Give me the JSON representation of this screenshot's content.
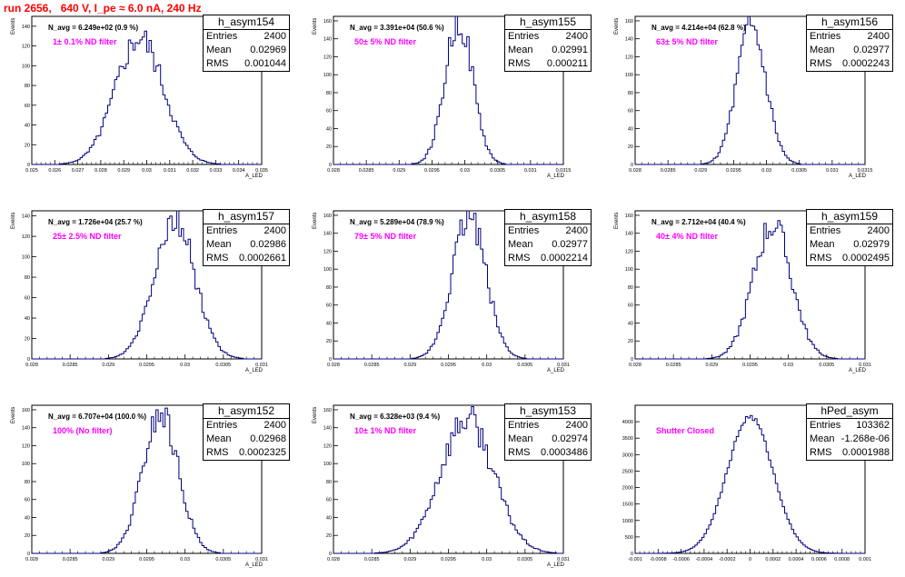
{
  "page": {
    "title": "run 2656,   640 V, I_pe ≈ 6.0 nA, 240 Hz",
    "title_color": "#ff0000",
    "line_color": "#000080",
    "filter_color": "#ff00ff"
  },
  "stats_labels": {
    "entries": "Entries",
    "mean": "Mean",
    "rms": "RMS"
  },
  "chart_data": [
    {
      "type": "histogram",
      "name": "h_asym154",
      "annotation": "N_avg = 6.249e+02 (0.9 %)",
      "filter": "1± 0.1% ND filter",
      "entries": "2400",
      "mean": "0.02969",
      "rms": "0.001044",
      "xlabel": "A_LED",
      "ylabel": "Events",
      "xlim": [
        0.025,
        0.035
      ],
      "ylim": [
        0,
        150
      ],
      "xticks": [
        "0.025",
        "0.026",
        "0.027",
        "0.028",
        "0.029",
        "0.03",
        "0.031",
        "0.032",
        "0.033",
        "0.034",
        "0.035"
      ],
      "yticks": [
        "0",
        "20",
        "40",
        "60",
        "80",
        "100",
        "120",
        "140"
      ],
      "mean_value": 0.02969,
      "sigma": 0.001044,
      "peak": 128
    },
    {
      "type": "histogram",
      "name": "h_asym155",
      "annotation": "N_avg = 3.391e+04 (50.6 %)",
      "filter": "50± 5% ND filter",
      "entries": "2400",
      "mean": "0.02991",
      "rms": "0.000211",
      "xlabel": "A_LED",
      "ylabel": "Events",
      "xlim": [
        0.028,
        0.0315
      ],
      "ylim": [
        0,
        165
      ],
      "xticks": [
        "0.028",
        "0.0285",
        "0.029",
        "0.0295",
        "0.03",
        "0.0305",
        "0.031",
        "0.0315"
      ],
      "yticks": [
        "0",
        "20",
        "40",
        "60",
        "80",
        "100",
        "120",
        "140",
        "160"
      ],
      "mean_value": 0.02991,
      "sigma": 0.000211,
      "peak": 160
    },
    {
      "type": "histogram",
      "name": "h_asym156",
      "annotation": "N_avg = 4.214e+04 (62.8 %)",
      "filter": "63± 5% ND filter",
      "entries": "2400",
      "mean": "0.02977",
      "rms": "0.0002243",
      "xlabel": "A_LED",
      "ylabel": "Events",
      "xlim": [
        0.028,
        0.0315
      ],
      "ylim": [
        0,
        165
      ],
      "xticks": [
        "0.028",
        "0.0285",
        "0.029",
        "0.0295",
        "0.03",
        "0.0305",
        "0.031",
        "0.0315"
      ],
      "yticks": [
        "0",
        "20",
        "40",
        "60",
        "80",
        "100",
        "120",
        "140",
        "160"
      ],
      "mean_value": 0.02977,
      "sigma": 0.0002243,
      "peak": 150
    },
    {
      "type": "histogram",
      "name": "h_asym157",
      "annotation": "N_avg = 1.726e+04 (25.7 %)",
      "filter": "25± 2.5% ND filter",
      "entries": "2400",
      "mean": "0.02986",
      "rms": "0.0002661",
      "xlabel": "A_LED",
      "ylabel": "Events",
      "xlim": [
        0.028,
        0.031
      ],
      "ylim": [
        0,
        145
      ],
      "xticks": [
        "0.028",
        "0.0285",
        "0.029",
        "0.0295",
        "0.03",
        "0.0305",
        "0.031"
      ],
      "yticks": [
        "0",
        "20",
        "40",
        "60",
        "80",
        "100",
        "120",
        "140"
      ],
      "mean_value": 0.02986,
      "sigma": 0.0002661,
      "peak": 138
    },
    {
      "type": "histogram",
      "name": "h_asym158",
      "annotation": "N_avg = 5.289e+04 (78.9 %)",
      "filter": "79± 5% ND filter",
      "entries": "2400",
      "mean": "0.02977",
      "rms": "0.0002214",
      "xlabel": "A_LED",
      "ylabel": "Events",
      "xlim": [
        0.028,
        0.031
      ],
      "ylim": [
        0,
        165
      ],
      "xticks": [
        "0.028",
        "0.0285",
        "0.029",
        "0.0295",
        "0.03",
        "0.0305",
        "0.031"
      ],
      "yticks": [
        "0",
        "20",
        "40",
        "60",
        "80",
        "100",
        "120",
        "140",
        "160"
      ],
      "mean_value": 0.02977,
      "sigma": 0.0002214,
      "peak": 160
    },
    {
      "type": "histogram",
      "name": "h_asym159",
      "annotation": "N_avg = 2.712e+04 (40.4 %)",
      "filter": "40± 4% ND filter",
      "entries": "2400",
      "mean": "0.02979",
      "rms": "0.0002495",
      "xlabel": "A_LED",
      "ylabel": "Events",
      "xlim": [
        0.028,
        0.031
      ],
      "ylim": [
        0,
        165
      ],
      "xticks": [
        "0.028",
        "0.0285",
        "0.029",
        "0.0295",
        "0.03",
        "0.0305",
        "0.031"
      ],
      "yticks": [
        "0",
        "20",
        "40",
        "60",
        "80",
        "100",
        "120",
        "140",
        "160"
      ],
      "mean_value": 0.02979,
      "sigma": 0.0002495,
      "peak": 150
    },
    {
      "type": "histogram",
      "name": "h_asym152",
      "annotation": "N_avg = 6.707e+04 (100.0 %)",
      "filter": "100% (No filter)",
      "entries": "2400",
      "mean": "0.02968",
      "rms": "0.0002325",
      "xlabel": "A_LED",
      "ylabel": "Events",
      "xlim": [
        0.028,
        0.031
      ],
      "ylim": [
        0,
        165
      ],
      "xticks": [
        "0.028",
        "0.0285",
        "0.029",
        "0.0295",
        "0.03",
        "0.0305",
        "0.031"
      ],
      "yticks": [
        "0",
        "20",
        "40",
        "60",
        "80",
        "100",
        "120",
        "140",
        "160"
      ],
      "mean_value": 0.02968,
      "sigma": 0.0002325,
      "peak": 155
    },
    {
      "type": "histogram",
      "name": "h_asym153",
      "annotation": "N_avg = 6.328e+03 (9.4 %)",
      "filter": "10± 1% ND filter",
      "entries": "2400",
      "mean": "0.02974",
      "rms": "0.0003486",
      "xlabel": "A_LED",
      "ylabel": "Events",
      "xlim": [
        0.028,
        0.031
      ],
      "ylim": [
        0,
        165
      ],
      "xticks": [
        "0.028",
        "0.0285",
        "0.029",
        "0.0295",
        "0.03",
        "0.0305",
        "0.031"
      ],
      "yticks": [
        "0",
        "20",
        "40",
        "60",
        "80",
        "100",
        "120",
        "140",
        "160"
      ],
      "mean_value": 0.02974,
      "sigma": 0.0003486,
      "peak": 150
    },
    {
      "type": "histogram",
      "name": "hPed_asym",
      "annotation": "",
      "filter": "Shutter Closed",
      "entries": "103362",
      "mean": "-1.268e-06",
      "rms": "0.0001988",
      "xlabel": "",
      "ylabel": "",
      "xlim": [
        -0.001,
        0.001
      ],
      "ylim": [
        0,
        4500
      ],
      "xticks": [
        "-0.001",
        "-0.0008",
        "-0.0006",
        "-0.0004",
        "-0.0002",
        "0",
        "0.0002",
        "0.0004",
        "0.0006",
        "0.0008",
        "0.001"
      ],
      "yticks": [
        "0",
        "500",
        "1000",
        "1500",
        "2000",
        "2500",
        "3000",
        "3500",
        "4000"
      ],
      "mean_value": 0.0,
      "sigma": 0.0001988,
      "peak": 4150
    }
  ]
}
